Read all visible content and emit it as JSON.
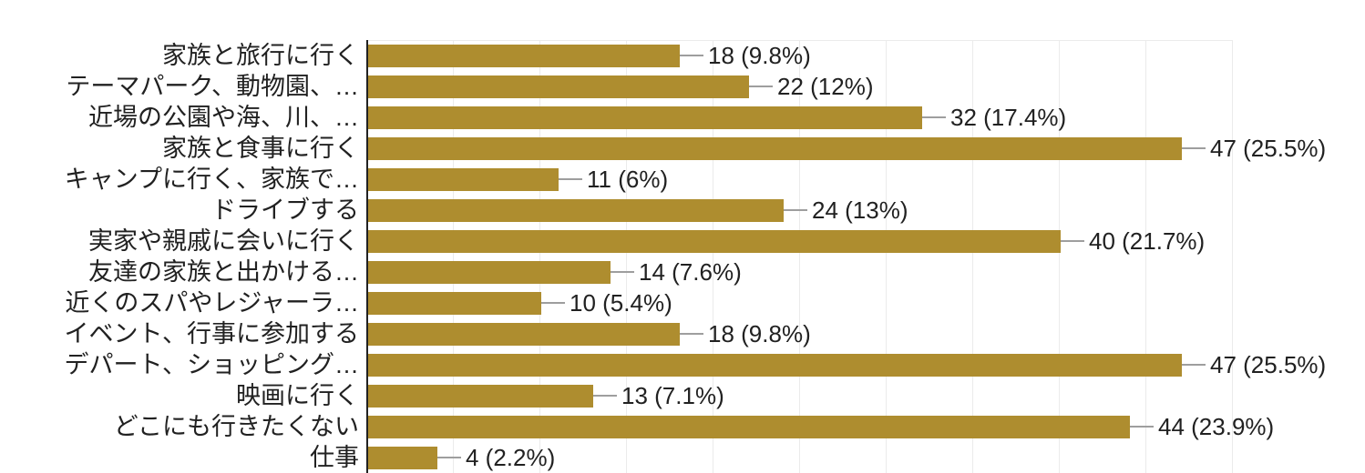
{
  "chart_data": {
    "type": "bar",
    "orientation": "horizontal",
    "title": "",
    "xlabel": "",
    "ylabel": "",
    "categories": [
      "家族と旅行に行く",
      "テーマパーク、動物園、…",
      "近場の公園や海、川、…",
      "家族と食事に行く",
      "キャンプに行く、家族で…",
      "ドライブする",
      "実家や親戚に会いに行く",
      "友達の家族と出かける…",
      "近くのスパやレジャーラ…",
      "イベント、行事に参加する",
      "デパート、ショッピング…",
      "映画に行く",
      "どこにも行きたくない",
      "仕事"
    ],
    "values": [
      18,
      22,
      32,
      47,
      11,
      24,
      40,
      14,
      10,
      18,
      47,
      13,
      44,
      4
    ],
    "percentages": [
      9.8,
      12,
      17.4,
      25.5,
      6,
      13,
      21.7,
      7.6,
      5.4,
      9.8,
      25.5,
      7.1,
      23.9,
      2.2
    ],
    "value_labels": [
      "18 (9.8%)",
      "22 (12%)",
      "32 (17.4%)",
      "47 (25.5%)",
      "11 (6%)",
      "24 (13%)",
      "40 (21.7%)",
      "14 (7.6%)",
      "10 (5.4%)",
      "18 (9.8%)",
      "47 (25.5%)",
      "13 (7.1%)",
      "44 (23.9%)",
      "4 (2.2%)"
    ],
    "xlim": [
      0,
      50
    ],
    "gridline_step": 5,
    "grid": true,
    "legend": "none",
    "colors": {
      "bar": "#AE8D2F",
      "leader_line": "#9E9E9E",
      "text": "#212121",
      "gridline": "#EBEBEB",
      "axis_line": "#212121",
      "background": "#FFFFFF"
    }
  }
}
